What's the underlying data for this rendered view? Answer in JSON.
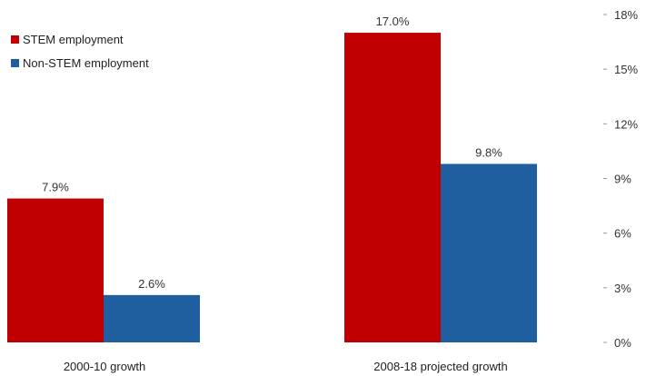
{
  "chart_data": {
    "type": "bar",
    "categories": [
      "2000-10 growth",
      "2008-18 projected growth"
    ],
    "series": [
      {
        "name": "STEM employment",
        "color": "#c00000",
        "values": [
          7.9,
          17.0
        ],
        "labels": [
          "7.9%",
          "17.0%"
        ]
      },
      {
        "name": "Non-STEM employment",
        "color": "#1f5fa0",
        "values": [
          2.6,
          9.8
        ],
        "labels": [
          "2.6%",
          "9.8%"
        ]
      }
    ],
    "ylim": [
      0,
      18
    ],
    "yticks": [
      0,
      3,
      6,
      9,
      12,
      15,
      18
    ],
    "ytick_labels": [
      "0%",
      "3%",
      "6%",
      "9%",
      "12%",
      "15%",
      "18%"
    ],
    "y_axis_position": "right",
    "legend": "top-left",
    "grid": false
  }
}
